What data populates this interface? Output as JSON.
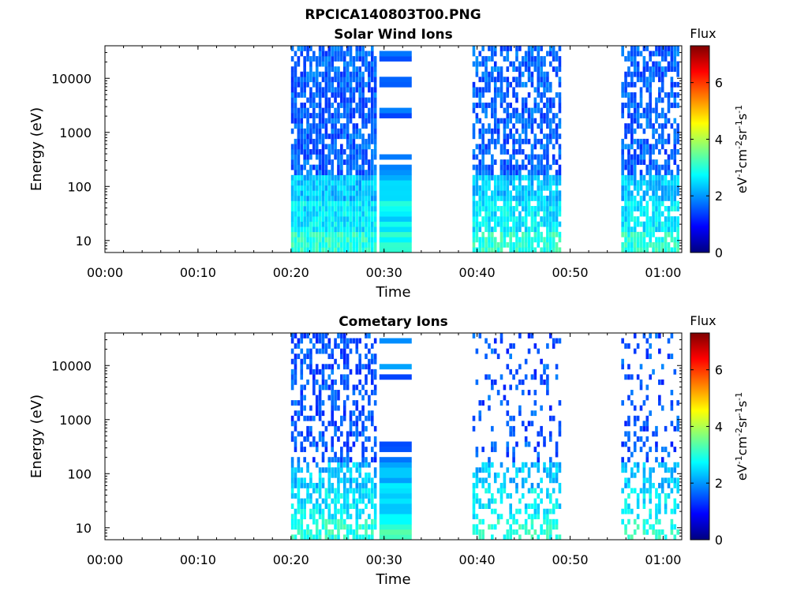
{
  "figure_title": "RPCICA140803T00.PNG",
  "colormap": {
    "name": "jet",
    "stops": [
      "#00007f",
      "#0000ff",
      "#007fff",
      "#00ffff",
      "#7fff7f",
      "#ffff00",
      "#ff7f00",
      "#ff0000",
      "#7f0000"
    ]
  },
  "chart_data": [
    {
      "type": "heatmap",
      "title": "Solar Wind Ions",
      "xlabel": "Time",
      "ylabel": "Energy (eV)",
      "yscale": "log",
      "xlim": [
        "00:00",
        "01:02"
      ],
      "ylim": [
        6,
        40000
      ],
      "x_ticks": [
        "00:00",
        "00:10",
        "00:20",
        "00:30",
        "00:40",
        "00:50",
        "01:00"
      ],
      "y_ticks": [
        "10",
        "100",
        "1000",
        "10000"
      ],
      "colorbar": {
        "label": "Flux",
        "unit_label": "eV-1cm-2sr-1s-1",
        "range": [
          0,
          7.3
        ],
        "ticks": [
          "0",
          "2",
          "4",
          "6"
        ]
      },
      "intervals": [
        {
          "start": "00:20",
          "end": "00:29",
          "kind": "scatter",
          "density": 0.78,
          "flux_high_e": 1.6
        },
        {
          "start": "00:29:30",
          "end": "00:33",
          "kind": "bands",
          "density": 1.0,
          "flux_high_e": 1.8
        },
        {
          "start": "00:39:30",
          "end": "00:49",
          "kind": "scatter",
          "density": 0.62,
          "flux_high_e": 1.6
        },
        {
          "start": "00:55:30",
          "end": "01:01:30",
          "kind": "scatter",
          "density": 0.62,
          "flux_high_e": 1.6
        }
      ],
      "flux_by_energy": [
        {
          "energy_min": 6,
          "energy_max": 15,
          "flux": 3.0
        },
        {
          "energy_min": 15,
          "energy_max": 50,
          "flux": 2.6
        },
        {
          "energy_min": 50,
          "energy_max": 150,
          "flux": 2.3
        },
        {
          "energy_min": 150,
          "energy_max": 40000,
          "flux": 1.6
        }
      ]
    },
    {
      "type": "heatmap",
      "title": "Cometary Ions",
      "xlabel": "Time",
      "ylabel": "Energy (eV)",
      "yscale": "log",
      "xlim": [
        "00:00",
        "01:02"
      ],
      "ylim": [
        6,
        40000
      ],
      "x_ticks": [
        "00:00",
        "00:10",
        "00:20",
        "00:30",
        "00:40",
        "00:50",
        "01:00"
      ],
      "y_ticks": [
        "10",
        "100",
        "1000",
        "10000"
      ],
      "colorbar": {
        "label": "Flux",
        "unit_label": "eV-1cm-2sr-1s-1",
        "range": [
          0,
          7.3
        ],
        "ticks": [
          "0",
          "2",
          "4",
          "6"
        ]
      },
      "intervals": [
        {
          "start": "00:20",
          "end": "00:29",
          "kind": "scatter",
          "density": 0.42,
          "flux_high_e": 1.5
        },
        {
          "start": "00:29:30",
          "end": "00:33",
          "kind": "bands",
          "density": 0.55,
          "flux_high_e": 1.8
        },
        {
          "start": "00:39:30",
          "end": "00:49",
          "kind": "scatter",
          "density": 0.2,
          "flux_high_e": 1.5
        },
        {
          "start": "00:55:30",
          "end": "01:01:30",
          "kind": "scatter",
          "density": 0.2,
          "flux_high_e": 1.5
        }
      ],
      "flux_by_energy": [
        {
          "energy_min": 6,
          "energy_max": 15,
          "flux": 3.0
        },
        {
          "energy_min": 15,
          "energy_max": 50,
          "flux": 2.6
        },
        {
          "energy_min": 50,
          "energy_max": 150,
          "flux": 2.3
        },
        {
          "energy_min": 150,
          "energy_max": 40000,
          "flux": 1.6
        }
      ]
    }
  ]
}
